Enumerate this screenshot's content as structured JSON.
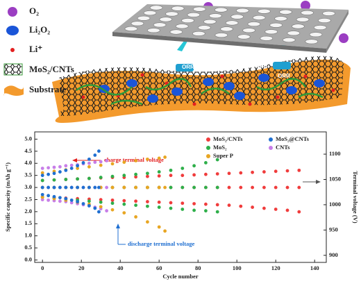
{
  "schematic": {
    "legend": [
      "O₂",
      "Li₂O₂",
      "Li⁺",
      "MoS₂/CNTs",
      "Substrate"
    ],
    "reaction_labels": [
      "ORR",
      "OER",
      "ORR"
    ]
  },
  "chart_data": {
    "type": "scatter",
    "x_label": "Cycle number",
    "y_label": "Specific capacity (mAh g⁻¹)",
    "y2_label": "Terminal voltage (V)",
    "annotations": [
      "charge terminal voltage",
      "discharge terminal voltage"
    ],
    "xlim": [
      -4,
      146
    ],
    "xticks": [
      0,
      20,
      40,
      60,
      80,
      100,
      120,
      140
    ],
    "ylim": [
      -0.1,
      5.3
    ],
    "yticks": [
      {
        "value": 0,
        "label": "0.0"
      },
      0.5,
      {
        "value": 1,
        "label": "1.0"
      },
      1.5,
      {
        "value": 2,
        "label": "2.0"
      },
      2.5,
      {
        "value": 3,
        "label": "3.0"
      },
      3.5,
      {
        "value": 4,
        "label": "4.0"
      },
      4.5,
      {
        "value": 5,
        "label": "5.0"
      }
    ],
    "y2lim": [
      886,
      1144
    ],
    "y2ticks": [
      900,
      950,
      1000,
      1050,
      1100
    ],
    "legend": "top-right",
    "series": [
      {
        "name": "MoS₂/CNTs",
        "color": "#f03c3c",
        "x": [
          0,
          6,
          12,
          18,
          24,
          30,
          36,
          42,
          48,
          54,
          60,
          66,
          72,
          78,
          84,
          90,
          96,
          102,
          108,
          114,
          120,
          126,
          132
        ],
        "values": [
          3,
          3,
          3,
          3,
          3,
          3,
          3,
          3,
          3,
          3,
          3,
          3,
          3,
          3,
          3,
          3,
          3,
          3,
          3,
          3,
          3,
          3,
          3
        ],
        "charge": [
          1048,
          1049,
          1050,
          1051,
          1052,
          1053,
          1054,
          1054,
          1055,
          1056,
          1057,
          1058,
          1058,
          1059,
          1060,
          1061,
          1062,
          1063,
          1064,
          1065,
          1066,
          1067,
          1068
        ],
        "discharge": [
          1015,
          1014,
          1013,
          1012,
          1011,
          1010,
          1009,
          1008,
          1007,
          1006,
          1005,
          1004,
          1003,
          1002,
          1001,
          1000,
          999,
          997,
          995,
          993,
          991,
          989,
          986
        ]
      },
      {
        "name": "MoS₂@CNTs",
        "color": "#1f6fd1",
        "x": [
          0,
          3,
          6,
          9,
          12,
          15,
          18,
          21,
          24,
          27,
          29
        ],
        "values": [
          3,
          3,
          3,
          3,
          3,
          3,
          3,
          3,
          3,
          3,
          3
        ],
        "charge": [
          1058,
          1060,
          1062,
          1065,
          1068,
          1072,
          1077,
          1083,
          1090,
          1098,
          1106
        ],
        "discharge": [
          1020,
          1018,
          1016,
          1014,
          1012,
          1009,
          1006,
          1002,
          998,
          993,
          986
        ]
      },
      {
        "name": "MoS₂",
        "color": "#2eaf4a",
        "x": [
          0,
          6,
          12,
          18,
          24,
          30,
          36,
          42,
          48,
          54,
          60,
          66,
          72,
          78,
          84,
          90
        ],
        "values": [
          3,
          3,
          3,
          3,
          3,
          3,
          3,
          3,
          3,
          3,
          3,
          3,
          3,
          3,
          3,
          3
        ],
        "charge": [
          1048,
          1049,
          1050,
          1051,
          1052,
          1054,
          1056,
          1058,
          1060,
          1062,
          1065,
          1068,
          1072,
          1077,
          1083,
          1089
        ],
        "discharge": [
          1015,
          1013,
          1011,
          1009,
          1007,
          1005,
          1003,
          1001,
          999,
          997,
          995,
          993,
          991,
          989,
          988,
          986
        ]
      },
      {
        "name": "CNTs",
        "color": "#c77ee8",
        "x": [
          0,
          3,
          6,
          9,
          12,
          15,
          18,
          21,
          24,
          27,
          30,
          33
        ],
        "values": [
          3,
          3,
          3,
          3,
          3,
          3,
          3,
          3,
          3,
          3,
          3,
          3
        ],
        "charge": [
          1072,
          1073,
          1074,
          1075,
          1077,
          1078,
          1079,
          1081,
          1082,
          1084,
          1085,
          1087
        ],
        "discharge": [
          1010,
          1009,
          1008,
          1007,
          1006,
          1004,
          1002,
          1000,
          998,
          995,
          992,
          988
        ]
      },
      {
        "name": "Super P",
        "color": "#e8a623",
        "x": [
          0,
          6,
          12,
          18,
          24,
          30,
          36,
          42,
          48,
          54,
          60,
          63
        ],
        "values": [
          3,
          3,
          3,
          3,
          3,
          3,
          3,
          3,
          3,
          3,
          3,
          3
        ],
        "charge": [
          1063,
          1066,
          1069,
          1072,
          1075,
          1078,
          1081,
          1084,
          1087,
          1090,
          1092,
          1094
        ],
        "discharge": [
          1015,
          1012,
          1009,
          1005,
          1001,
          996,
          990,
          984,
          976,
          966,
          956,
          948
        ]
      }
    ]
  }
}
